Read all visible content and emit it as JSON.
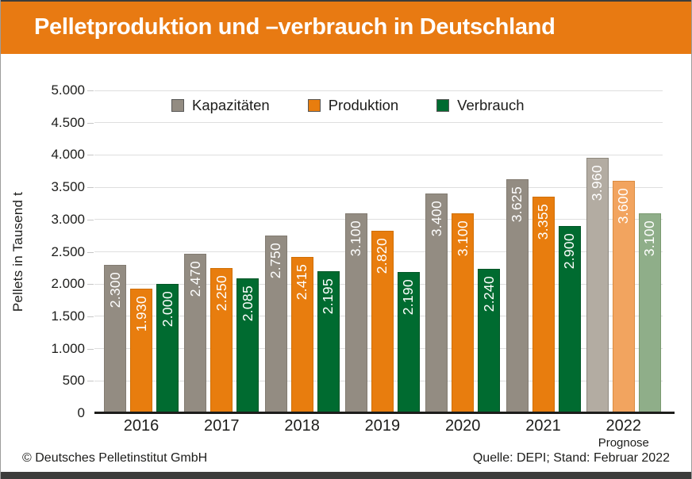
{
  "header": {
    "title": "Pelletproduktion und –verbrauch in Deutschland",
    "bg_color": "#E87A12",
    "text_color": "#FFFFFF"
  },
  "footer": {
    "copyright": "© Deutsches Pelletinstitut GmbH",
    "source": "Quelle: DEPI; Stand: Februar 2022"
  },
  "frame_colors": {
    "dark_bar": "#3C3C3B",
    "side_border": "#9D9D9C"
  },
  "chart_data": {
    "type": "bar",
    "title": "Pelletproduktion und –verbrauch in Deutschland",
    "xlabel": "",
    "ylabel": "Pellets in Tausend t",
    "ylim": [
      0,
      5000
    ],
    "ytick_step": 500,
    "ytick_labels": [
      "0",
      "500",
      "1.000",
      "1.500",
      "2.000",
      "2.500",
      "3.000",
      "3.500",
      "4.000",
      "4.500",
      "5.000"
    ],
    "grid": true,
    "legend_position": "top-inside",
    "categories": [
      "2016",
      "2017",
      "2018",
      "2019",
      "2020",
      "2021",
      "2022"
    ],
    "category_note": {
      "index": 6,
      "label": "Prognose"
    },
    "value_label_color": "#FFFFFF",
    "series": [
      {
        "name": "Kapazitäten",
        "color": "#938C82",
        "border_color": "#827B71",
        "prognose_color": "#B3ACA2",
        "prognose_border_color": "#8E887E",
        "values": [
          2300,
          2470,
          2750,
          3100,
          3400,
          3625,
          3960
        ],
        "labels": [
          "2.300",
          "2.470",
          "2.750",
          "3.100",
          "3.400",
          "3.625",
          "3.960"
        ]
      },
      {
        "name": "Produktion",
        "color": "#E87D0E",
        "border_color": "#D06F04",
        "prognose_color": "#F2A45F",
        "prognose_border_color": "#DB8B3F",
        "values": [
          1930,
          2250,
          2415,
          2820,
          3100,
          3355,
          3600
        ],
        "labels": [
          "1.930",
          "2.250",
          "2.415",
          "2.820",
          "3.100",
          "3.355",
          "3.600"
        ]
      },
      {
        "name": "Verbrauch",
        "color": "#006B30",
        "border_color": "#005526",
        "prognose_color": "#8FAE89",
        "prognose_border_color": "#79996F",
        "values": [
          2000,
          2085,
          2195,
          2190,
          2240,
          2900,
          3100
        ],
        "labels": [
          "2.000",
          "2.085",
          "2.195",
          "2.190",
          "2.240",
          "2.900",
          "3.100"
        ]
      }
    ]
  }
}
